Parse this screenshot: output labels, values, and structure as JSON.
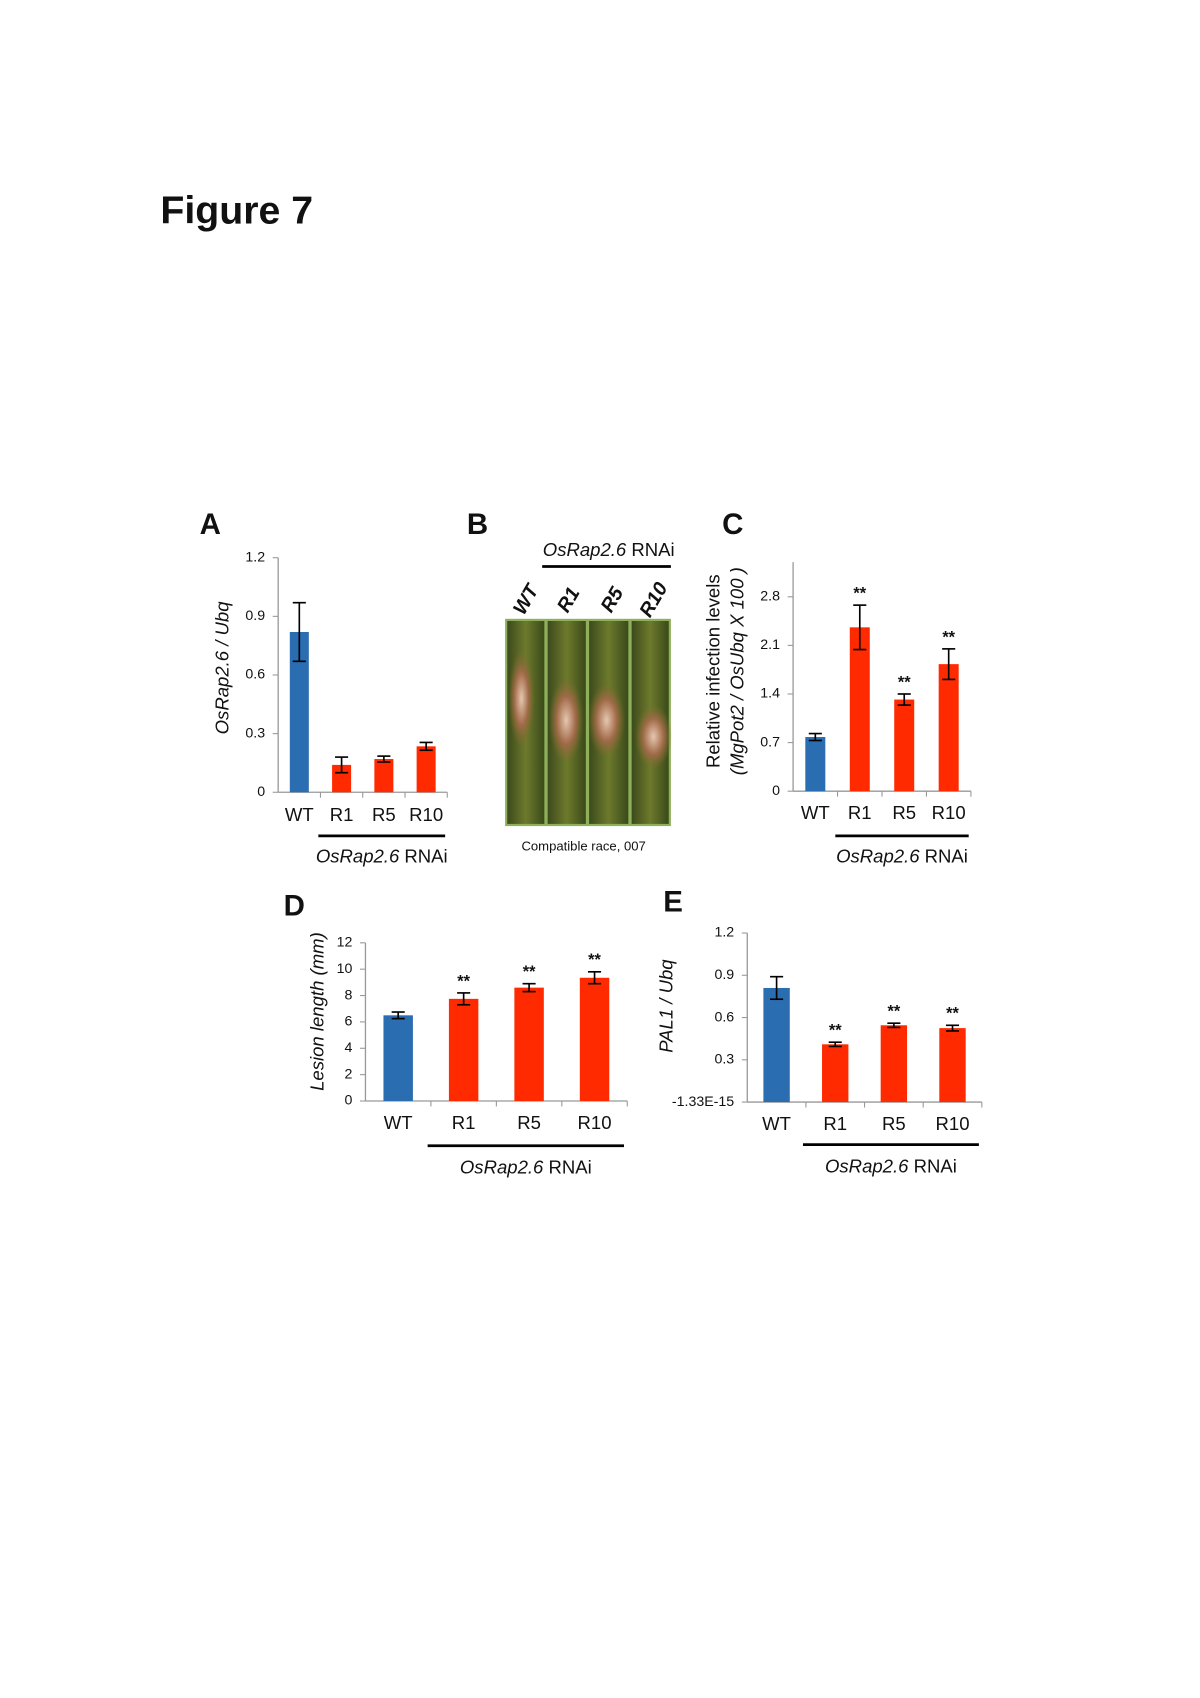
{
  "figure_title": "Figure 7",
  "panel_b": {
    "panel": "B",
    "group_label_gene": "OsRap2.6",
    "group_label_suffix": "RNAi",
    "lanes": [
      "WT",
      "R1",
      "R5",
      "R10"
    ],
    "caption": "Compatible race, 007"
  },
  "chart_data": [
    {
      "type": "bar",
      "panel": "A",
      "ylabel": [
        "OsRap2.6 / Ubq"
      ],
      "categories": [
        "WT",
        "R1",
        "R5",
        "R10"
      ],
      "values": [
        0.82,
        0.14,
        0.17,
        0.235
      ],
      "errors": [
        0.15,
        0.04,
        0.015,
        0.02
      ],
      "colors": [
        "#2a6db0",
        "#ff2a00",
        "#ff2a00",
        "#ff2a00"
      ],
      "ylim": [
        0,
        1.2
      ],
      "yticks": [
        0,
        0.3,
        0.6,
        0.9,
        1.2
      ],
      "group_label_gene": "OsRap2.6",
      "group_label_suffix": "RNAi"
    },
    {
      "type": "bar",
      "panel": "C",
      "ylabel": [
        "Relative infection levels",
        "(MgPot2 / OsUbq X 100 )"
      ],
      "categories": [
        "WT",
        "R1",
        "R5",
        "R10"
      ],
      "values": [
        0.78,
        2.36,
        1.32,
        1.83
      ],
      "errors": [
        0.05,
        0.32,
        0.08,
        0.22
      ],
      "colors": [
        "#2a6db0",
        "#ff2a00",
        "#ff2a00",
        "#ff2a00"
      ],
      "significance": [
        null,
        "**",
        "**",
        "**"
      ],
      "ylim": [
        0,
        3.3
      ],
      "yticks": [
        0,
        0.7,
        1.4,
        2.1,
        2.8
      ],
      "group_label_gene": "OsRap2.6",
      "group_label_suffix": "RNAi"
    },
    {
      "type": "bar",
      "panel": "D",
      "ylabel": [
        "Lesion length (mm)"
      ],
      "categories": [
        "WT",
        "R1",
        "R5",
        "R10"
      ],
      "values": [
        6.5,
        7.75,
        8.6,
        9.35
      ],
      "errors": [
        0.25,
        0.45,
        0.3,
        0.45
      ],
      "colors": [
        "#2a6db0",
        "#ff2a00",
        "#ff2a00",
        "#ff2a00"
      ],
      "significance": [
        null,
        "**",
        "**",
        "**"
      ],
      "ylim": [
        0,
        12
      ],
      "yticks": [
        0,
        2,
        4,
        6,
        8,
        10,
        12
      ],
      "group_label_gene": "OsRap2.6",
      "group_label_suffix": "RNAi"
    },
    {
      "type": "bar",
      "panel": "E",
      "ylabel": [
        "PAL1 / Ubq"
      ],
      "categories": [
        "WT",
        "R1",
        "R5",
        "R10"
      ],
      "values": [
        0.81,
        0.41,
        0.545,
        0.525
      ],
      "errors": [
        0.08,
        0.015,
        0.015,
        0.02
      ],
      "colors": [
        "#2a6db0",
        "#ff2a00",
        "#ff2a00",
        "#ff2a00"
      ],
      "significance": [
        null,
        "**",
        "**",
        "**"
      ],
      "ylim": [
        -1.33e-15,
        1.2
      ],
      "yticks": [
        {
          "value": -1.33e-15,
          "label": "-1.33E-15"
        },
        0.3,
        0.6,
        0.9,
        1.2
      ],
      "group_label_gene": "OsRap2.6",
      "group_label_suffix": "RNAi"
    }
  ]
}
